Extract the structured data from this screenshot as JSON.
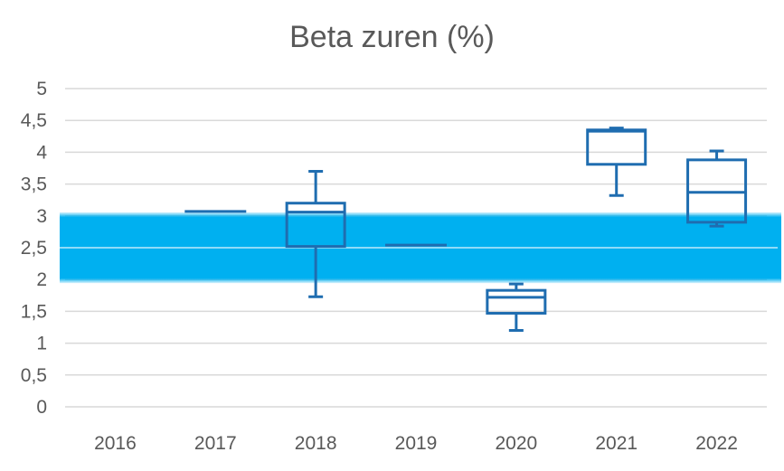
{
  "chart_data": {
    "type": "box",
    "title": "Beta zuren (%)",
    "categories": [
      "2016",
      "2017",
      "2018",
      "2019",
      "2020",
      "2021",
      "2022"
    ],
    "y_ticks": [
      "0",
      "0,5",
      "1",
      "1,5",
      "2",
      "2,5",
      "3",
      "3,5",
      "4",
      "4,5",
      "5"
    ],
    "ylim": [
      0,
      5
    ],
    "grid": true,
    "boxes": [
      null,
      {
        "min": 3.07,
        "q1": 3.07,
        "median": 3.07,
        "q3": 3.07,
        "max": 3.07
      },
      {
        "min": 1.73,
        "q1": 2.52,
        "median": 3.06,
        "q3": 3.2,
        "max": 3.7
      },
      {
        "min": 2.54,
        "q1": 2.54,
        "median": 2.54,
        "q3": 2.54,
        "max": 2.54
      },
      {
        "min": 1.2,
        "q1": 1.47,
        "median": 1.72,
        "q3": 1.83,
        "max": 1.93
      },
      {
        "min": 3.32,
        "q1": 3.81,
        "median": 4.33,
        "q3": 4.35,
        "max": 4.38
      },
      {
        "min": 2.84,
        "q1": 2.9,
        "median": 3.37,
        "q3": 3.88,
        "max": 4.02
      }
    ],
    "reference_band": {
      "low": 2.0,
      "high": 3.0,
      "center": 2.5
    },
    "colors": {
      "box": "#1f6db0",
      "band": "#00b0f0",
      "band_line": "#bfe9fb",
      "grid": "#d9d9d9",
      "text": "#595959"
    }
  }
}
